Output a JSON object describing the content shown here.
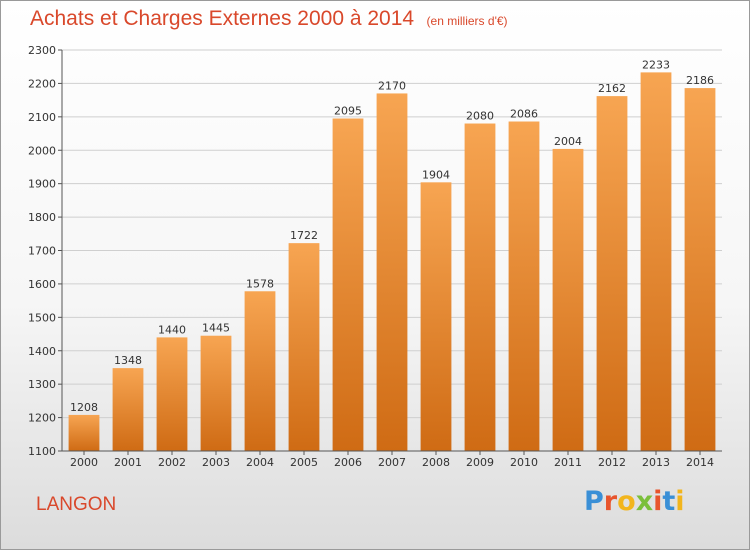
{
  "header": {
    "title": "Achats et Charges Externes 2000 à 2014",
    "unit": "(en milliers d'€)"
  },
  "footer": {
    "city": "LANGON",
    "brand": "Proxiti",
    "brand_colors": [
      "#3a8fd6",
      "#e8542c",
      "#f2b51d",
      "#7bbf3b",
      "#e8542c",
      "#3a8fd6",
      "#f2b51d"
    ]
  },
  "chart_data": {
    "type": "bar",
    "title": "Achats et Charges Externes 2000 à 2014",
    "categories": [
      "2000",
      "2001",
      "2002",
      "2003",
      "2004",
      "2005",
      "2006",
      "2007",
      "2008",
      "2009",
      "2010",
      "2011",
      "2012",
      "2013",
      "2014"
    ],
    "values": [
      1208,
      1348,
      1440,
      1445,
      1578,
      1722,
      2095,
      2170,
      1904,
      2080,
      2086,
      2004,
      2162,
      2233,
      2186
    ],
    "ylim": [
      1100,
      2300
    ],
    "yticks": [
      1100,
      1200,
      1300,
      1400,
      1500,
      1600,
      1700,
      1800,
      1900,
      2000,
      2100,
      2200,
      2300
    ],
    "grid": true,
    "bar_color_top": "#f7a552",
    "bar_color_bottom": "#cf6b14"
  }
}
